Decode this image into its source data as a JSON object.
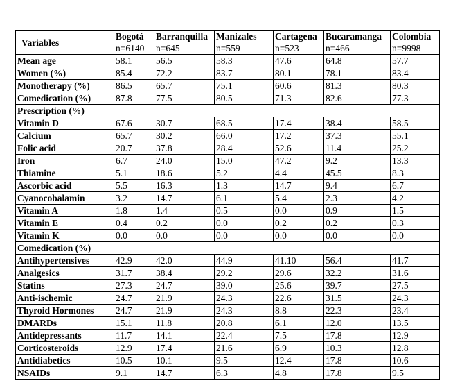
{
  "table": {
    "header": [
      "Variables",
      "Bogotá",
      "Barranquilla",
      "Manizales",
      "Cartagena",
      "Bucaramanga",
      "Colombia"
    ],
    "counts": [
      "n=6140",
      "n=645",
      "n=559",
      "n=523",
      "n=466",
      "n=9998"
    ],
    "rows": [
      [
        "Mean age",
        "58.1",
        "56.5",
        "58.3",
        "47.6",
        "64.8",
        "57.7"
      ],
      [
        "Women (%)",
        "85.4",
        "72.2",
        "83.7",
        "80.1",
        "78.1",
        "83.4"
      ],
      [
        "Monotherapy (%)",
        "86.5",
        "65.7",
        "75.1",
        "60.6",
        "81.3",
        "80.3"
      ],
      [
        "Comedication (%)",
        "87.8",
        "77.5",
        "80.5",
        "71.3",
        "82.6",
        "77.3"
      ],
      [
        "Prescription (%)"
      ],
      [
        "Vitamin D",
        "67.6",
        "30.7",
        "68.5",
        "17.4",
        "38.4",
        "58.5"
      ],
      [
        "Calcium",
        "65.7",
        "30.2",
        "66.0",
        "17.2",
        "37.3",
        "55.1"
      ],
      [
        "Folic acid",
        "20.7",
        "37.8",
        "28.4",
        "52.6",
        "11.4",
        "25.2"
      ],
      [
        "Iron",
        "6.7",
        "24.0",
        "15.0",
        "47.2",
        "9.2",
        "13.3"
      ],
      [
        "Thiamine",
        "5.1",
        "18.6",
        "5.2",
        "4.4",
        "45.5",
        "8.3"
      ],
      [
        "Ascorbic acid",
        "5.5",
        "16.3",
        "1.3",
        "14.7",
        "9.4",
        "6.7"
      ],
      [
        "Cyanocobalamin",
        "3.2",
        "14.7",
        "6.1",
        "5.4",
        "2.3",
        "4.2"
      ],
      [
        "Vitamin A",
        "1.8",
        "1.4",
        "0.5",
        "0.0",
        "0.9",
        "1.5"
      ],
      [
        "Vitamin E",
        "0.4",
        "0.2",
        "0.0",
        "0.2",
        "0.2",
        "0.3"
      ],
      [
        "Vitamin K",
        "0.0",
        "0.0",
        "0.0",
        "0.0",
        "0.0",
        "0.0"
      ],
      [
        "Comedication (%)"
      ],
      [
        "Antihypertensives",
        "42.9",
        "42.0",
        "44.9",
        "41.10",
        "56.4",
        "41.7"
      ],
      [
        "Analgesics",
        "31.7",
        "38.4",
        "29.2",
        "29.6",
        "32.2",
        "31.6"
      ],
      [
        "Statins",
        "27.3",
        "24.7",
        "39.0",
        "25.6",
        "39.7",
        "27.5"
      ],
      [
        "Anti-ischemic",
        "24.7",
        "21.9",
        "24.3",
        "22.6",
        "31.5",
        "24.3"
      ],
      [
        "Thyroid Hormones",
        "24.7",
        "21.9",
        "24.3",
        "8.8",
        "22.3",
        "23.4"
      ],
      [
        "DMARDs",
        "15.1",
        "11.8",
        "20.8",
        "6.1",
        "12.0",
        "13.5"
      ],
      [
        "Antidepressants",
        "11.7",
        "14.1",
        "22.4",
        "7.5",
        "17.8",
        "12.9"
      ],
      [
        "Corticosteroids",
        "12.9",
        "17.4",
        "21.6",
        "6.9",
        "10.3",
        "12.8"
      ],
      [
        "Antidiabetics",
        "10.5",
        "10.1",
        "9.5",
        "12.4",
        "17.8",
        "10.6"
      ],
      [
        "NSAIDs",
        "9.1",
        "14.7",
        "6.3",
        "4.8",
        "17.8",
        "9.5"
      ]
    ]
  }
}
